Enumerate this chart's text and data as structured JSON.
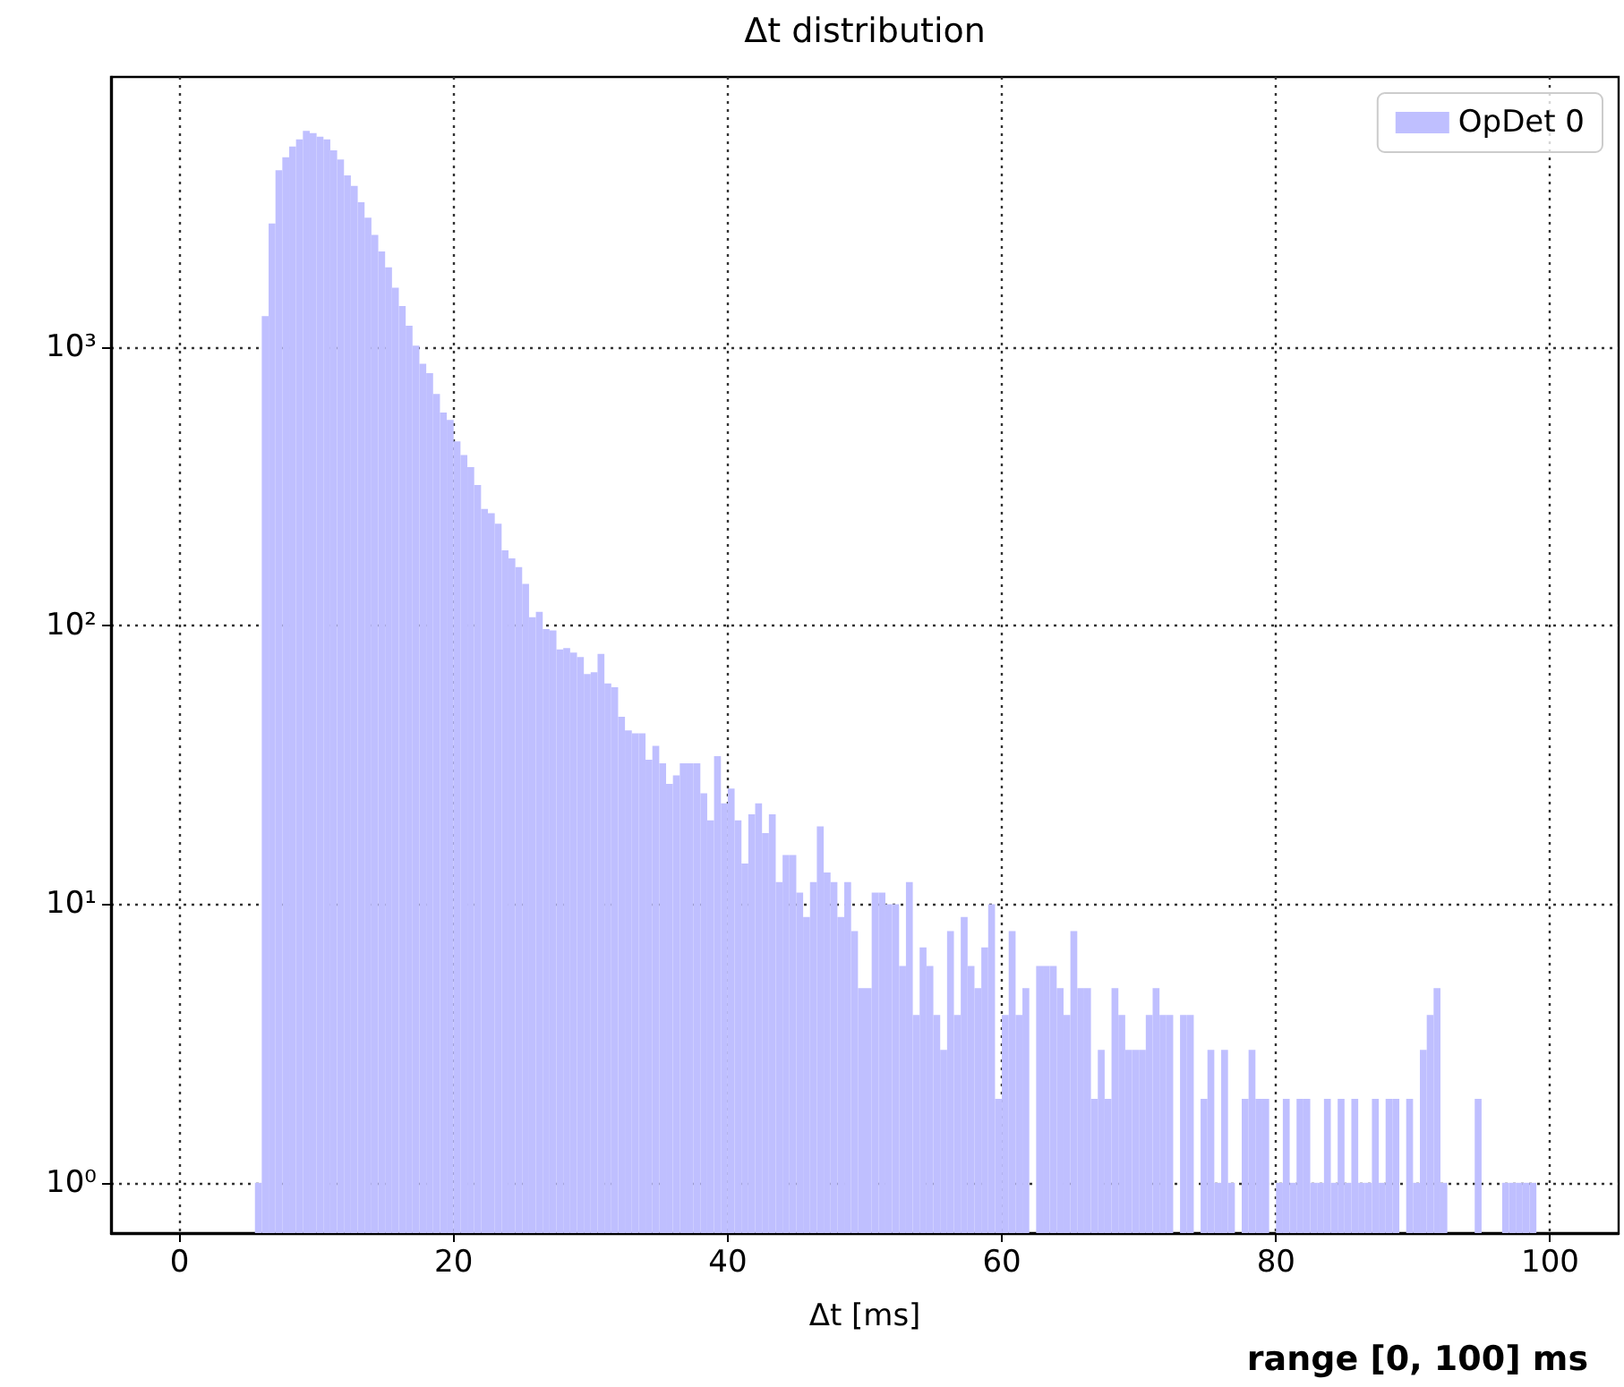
{
  "chart_data": {
    "type": "histogram",
    "title": "Δt distribution",
    "xlabel": "Δt [ms]",
    "annotations": [
      "range [0, 100] ms"
    ],
    "bins": [
      0,
      0.5,
      1,
      1.5,
      2,
      2.5,
      3,
      3.5,
      4,
      4.5,
      5,
      5.5,
      6,
      6.5,
      7,
      7.5,
      8,
      8.5,
      9,
      9.5,
      10,
      10.5,
      11,
      11.5,
      12,
      12.5,
      13,
      13.5,
      14,
      14.5,
      15,
      15.5,
      16,
      16.5,
      17,
      17.5,
      18,
      18.5,
      19,
      19.5,
      20,
      20.5,
      21,
      21.5,
      22,
      22.5,
      23,
      23.5,
      24,
      24.5,
      25,
      25.5,
      26,
      26.5,
      27,
      27.5,
      28,
      28.5,
      29,
      29.5,
      30,
      30.5,
      31,
      31.5,
      32,
      32.5,
      33,
      33.5,
      34,
      34.5,
      35,
      35.5,
      36,
      36.5,
      37,
      37.5,
      38,
      38.5,
      39,
      39.5,
      40,
      40.5,
      41,
      41.5,
      42,
      42.5,
      43,
      43.5,
      44,
      44.5,
      45,
      45.5,
      46,
      46.5,
      47,
      47.5,
      48,
      48.5,
      49,
      49.5,
      50,
      50.5,
      51,
      51.5,
      52,
      52.5,
      53,
      53.5,
      54,
      54.5,
      55,
      55.5,
      56,
      56.5,
      57,
      57.5,
      58,
      58.5,
      59,
      59.5,
      60,
      60.5,
      61,
      61.5,
      62,
      62.5,
      63,
      63.5,
      64,
      64.5,
      65,
      65.5,
      66,
      66.5,
      67,
      67.5,
      68,
      68.5,
      69,
      69.5,
      70,
      70.5,
      71,
      71.5,
      72,
      72.5,
      73,
      73.5,
      74,
      74.5,
      75,
      75.5,
      76,
      76.5,
      77,
      77.5,
      78,
      78.5,
      79,
      79.5,
      80,
      80.5,
      81,
      81.5,
      82,
      82.5,
      83,
      83.5,
      84,
      84.5,
      85,
      85.5,
      86,
      86.5,
      87,
      87.5,
      88,
      88.5,
      89,
      89.5,
      90,
      90.5,
      91,
      91.5,
      92,
      92.5,
      93,
      93.5,
      94,
      94.5,
      95,
      95.5,
      96,
      96.5,
      97,
      97.5,
      98,
      98.5,
      99,
      99.5,
      100
    ],
    "series": [
      {
        "name": "OpDet 0",
        "color": "#bfbfff",
        "values": [
          null,
          null,
          null,
          null,
          null,
          null,
          null,
          null,
          null,
          null,
          null,
          1,
          1290,
          2770,
          4300,
          4790,
          5230,
          5550,
          5960,
          5850,
          5680,
          5550,
          5070,
          4700,
          4120,
          3780,
          3300,
          2910,
          2520,
          2200,
          1930,
          1630,
          1400,
          1190,
          1010,
          869,
          804,
          678,
          581,
          547,
          458,
          409,
          370,
          319,
          262,
          253,
          232,
          186,
          174,
          162,
          141,
          107,
          112,
          97,
          96,
          82,
          83,
          80,
          77,
          67,
          68,
          79,
          62,
          60,
          47,
          42,
          41,
          41,
          33,
          37,
          32,
          27,
          29,
          32,
          32,
          32,
          25,
          20,
          34,
          23,
          26,
          20,
          14,
          21,
          23,
          18,
          21,
          12,
          15,
          15,
          11,
          9,
          12,
          19,
          13,
          12,
          9,
          12,
          8,
          5,
          5,
          11,
          11,
          10,
          10,
          6,
          12,
          4,
          7,
          6,
          4,
          3,
          8,
          4,
          9,
          6,
          5,
          7,
          10,
          2,
          4,
          8,
          4,
          5,
          null,
          6,
          6,
          6,
          5,
          4,
          8,
          5,
          5,
          2,
          3,
          2,
          5,
          4,
          3,
          3,
          3,
          4,
          5,
          4,
          4,
          null,
          4,
          4,
          null,
          2,
          3,
          1,
          3,
          1,
          null,
          2,
          3,
          2,
          2,
          null,
          1,
          2,
          1,
          2,
          2,
          1,
          1,
          2,
          1,
          2,
          1,
          2,
          1,
          1,
          2,
          1,
          2,
          2,
          null,
          2,
          1,
          3,
          4,
          5,
          1,
          null,
          null,
          null,
          null,
          2,
          null,
          null,
          null,
          1,
          1,
          1,
          1,
          1,
          null,
          null
        ]
      }
    ],
    "xlim": [
      -5,
      105
    ],
    "xticks": [
      0,
      20,
      40,
      60,
      80,
      100
    ],
    "log": "y",
    "ylim": [
      0.66,
      9300
    ],
    "yticks": [
      {
        "value": 1,
        "label": "10⁰"
      },
      {
        "value": 10,
        "label": "10¹"
      },
      {
        "value": 100,
        "label": "10²"
      },
      {
        "value": 1000,
        "label": "10³"
      }
    ],
    "grid": true,
    "legend": "top right"
  }
}
